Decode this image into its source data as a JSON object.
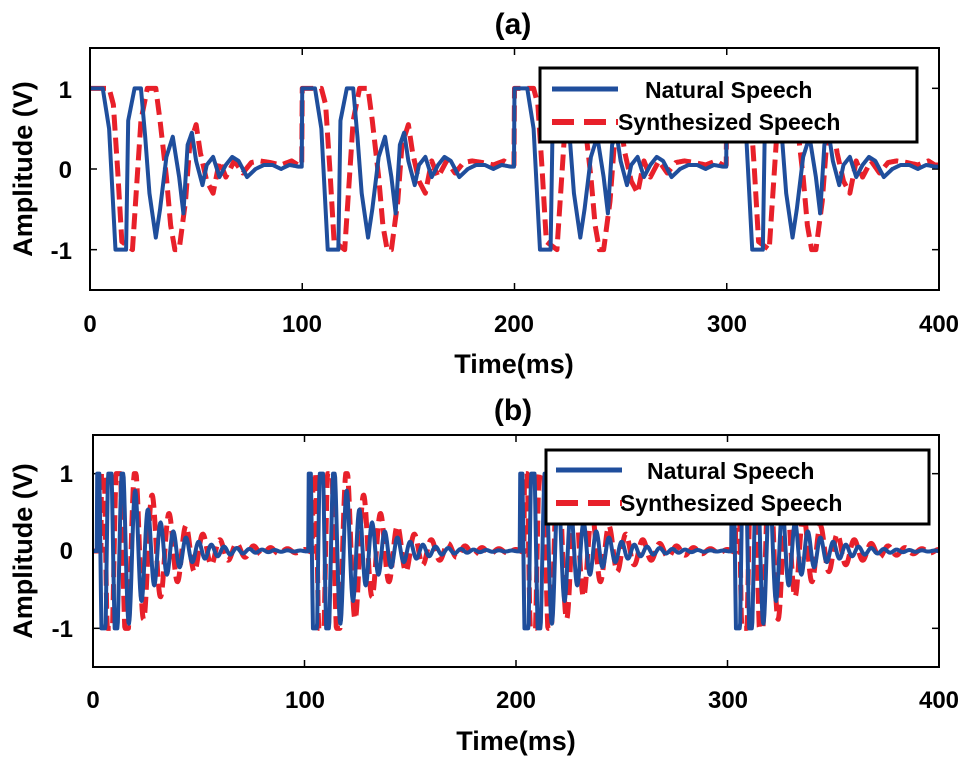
{
  "chart_data": [
    {
      "type": "line",
      "title": "(a)",
      "xlabel": "Time(ms)",
      "ylabel": "Amplitude (V)",
      "xlim": [
        0,
        400
      ],
      "ylim": [
        -1.5,
        1.5
      ],
      "xticks": [
        "0",
        "100",
        "200",
        "300",
        "400"
      ],
      "yticks": [
        "1",
        "0",
        "-1"
      ],
      "ytick_values": [
        1,
        0,
        -1
      ],
      "legend": {
        "placement": "top-right",
        "entries": [
          "Natural Speech",
          "Synthesized Speech"
        ]
      },
      "period_ms": 100,
      "series": [
        {
          "name": "Natural Speech",
          "style": "solid",
          "color": "#1f4e9c",
          "cycle_onsets_ms": [
            0,
            100,
            200,
            300
          ],
          "cycle_waveform": {
            "t": [
              0,
              6,
              9,
              11,
              12,
              17,
              18,
              21,
              24,
              26,
              28,
              31,
              33,
              36,
              39,
              42,
              44,
              46,
              48,
              50,
              53,
              55,
              58,
              61,
              64,
              67,
              70,
              74,
              78,
              82,
              86,
              90,
              94,
              98
            ],
            "v": [
              1,
              1,
              0.5,
              -0.5,
              -1,
              -1,
              0.6,
              1,
              1,
              0.4,
              -0.3,
              -0.85,
              -0.5,
              0.15,
              0.4,
              -0.1,
              -0.55,
              0.3,
              0.45,
              0.1,
              -0.2,
              0.05,
              0.15,
              -0.1,
              0.05,
              0.15,
              0.1,
              -0.1,
              0,
              0.05,
              0.05,
              0,
              0.05,
              0.03
            ]
          }
        },
        {
          "name": "Synthesized Speech",
          "style": "dashed",
          "color": "#e8202a",
          "cycle_onsets_ms": [
            0,
            100,
            200,
            300
          ],
          "cycle_waveform": {
            "t": [
              0,
              9,
              11,
              13,
              15,
              20,
              22,
              24,
              27,
              29,
              31,
              33,
              36,
              38,
              40,
              42,
              45,
              47,
              50,
              52,
              55,
              58,
              61,
              64,
              68,
              72,
              76,
              80,
              85,
              90,
              95,
              98
            ],
            "v": [
              1,
              1,
              0.8,
              0,
              -0.9,
              -1,
              -0.2,
              0.6,
              1,
              1,
              1,
              0.6,
              -0.1,
              -0.7,
              -1,
              -1,
              -0.4,
              0.3,
              0.55,
              0.2,
              -0.15,
              -0.3,
              0.1,
              -0.1,
              0.1,
              -0.05,
              0.08,
              0.1,
              0.08,
              0.05,
              0.1,
              0.05
            ]
          }
        }
      ]
    },
    {
      "type": "line",
      "title": "(b)",
      "xlabel": "Time(ms)",
      "ylabel": "Amplitude (V)",
      "xlim": [
        0,
        400
      ],
      "ylim": [
        -1.5,
        1.5
      ],
      "xticks": [
        "0",
        "100",
        "200",
        "300",
        "400"
      ],
      "yticks": [
        "1",
        "0",
        "-1"
      ],
      "ytick_values": [
        1,
        0,
        -1
      ],
      "legend": {
        "placement": "top-right",
        "entries": [
          "Natural Speech",
          "Synthesized Speech"
        ]
      },
      "period_ms": 100,
      "series": [
        {
          "name": "Natural Speech",
          "style": "solid",
          "color": "#1f4e9c",
          "cycle_onsets_ms": [
            2,
            102,
            202,
            302
          ],
          "damped_oscillation": {
            "cycle_ms": 6,
            "decay_ms": 16,
            "clip": 1
          }
        },
        {
          "name": "Synthesized Speech",
          "style": "dashed",
          "color": "#e8202a",
          "cycle_onsets_ms": [
            4,
            104,
            204,
            304
          ],
          "damped_oscillation": {
            "cycle_ms": 8,
            "decay_ms": 20,
            "clip": 1
          }
        }
      ]
    }
  ]
}
